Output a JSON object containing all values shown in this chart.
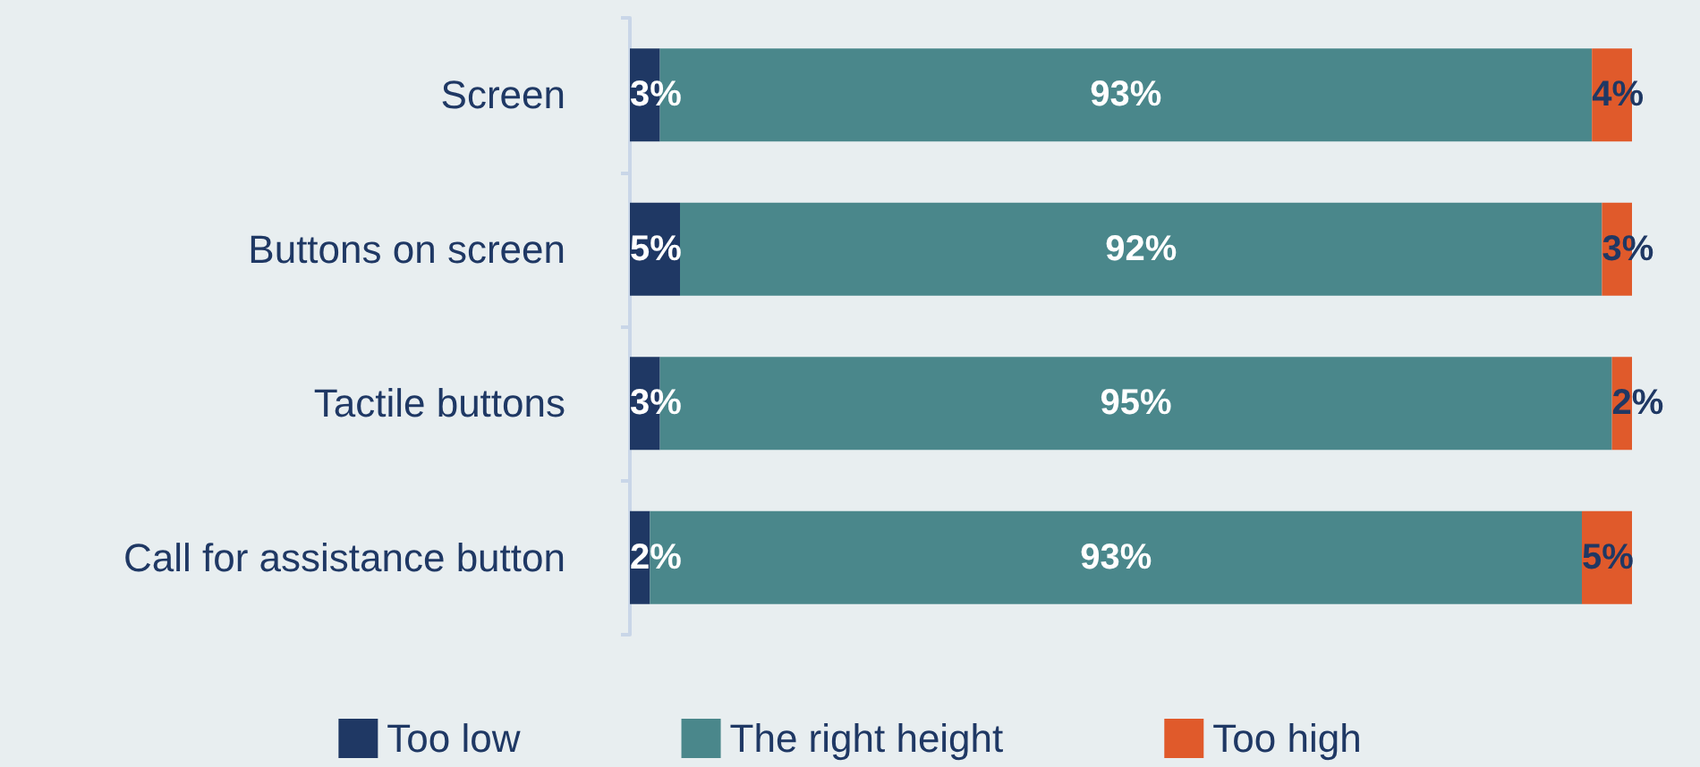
{
  "chart_data": {
    "type": "bar",
    "orientation": "horizontal",
    "stacked": true,
    "categories": [
      "Screen",
      "Buttons on screen",
      "Tactile buttons",
      "Call for assistance button"
    ],
    "series": [
      {
        "name": "Too low",
        "color": "#1f3864",
        "values": [
          3,
          5,
          3,
          2
        ],
        "value_labels": [
          "3%",
          "5%",
          "3%",
          "2%"
        ]
      },
      {
        "name": "The right height",
        "color": "#4a878b",
        "values": [
          93,
          92,
          95,
          93
        ],
        "value_labels": [
          "93%",
          "92%",
          "95%",
          "93%"
        ]
      },
      {
        "name": "Too high",
        "color": "#e05a2b",
        "values": [
          4,
          3,
          2,
          5
        ],
        "value_labels": [
          "4%",
          "3%",
          "2%",
          "5%"
        ]
      }
    ],
    "xlim": [
      0,
      100
    ],
    "tick_labels": "y",
    "grid": false,
    "legend": "bottom"
  }
}
